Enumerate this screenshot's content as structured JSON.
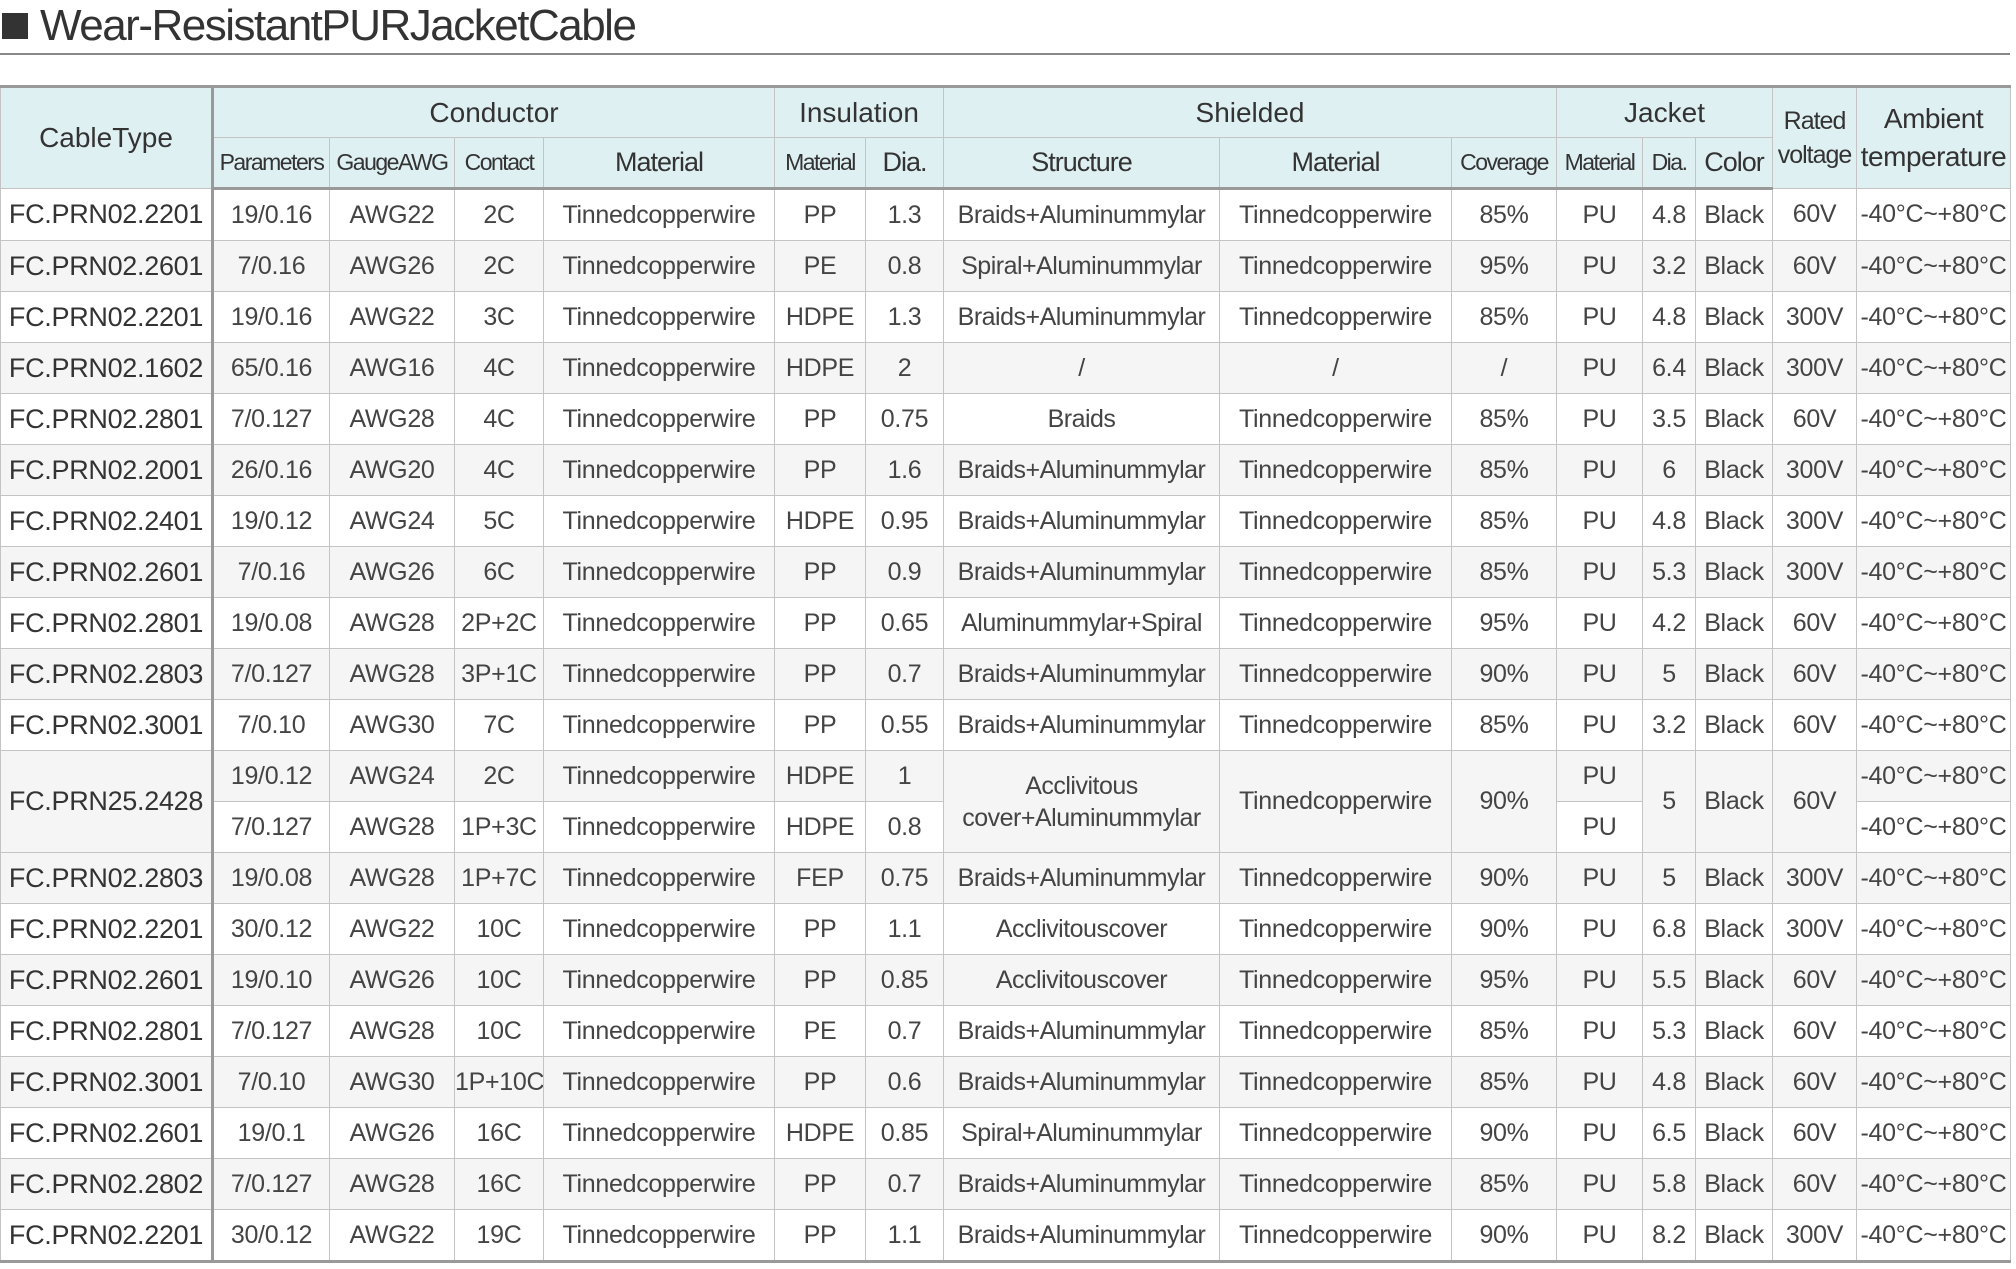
{
  "title": "Wear-ResistantPURJacketCable",
  "header": {
    "cable_type": "CableType",
    "conductor": "Conductor",
    "insulation": "Insulation",
    "shielded": "Shielded",
    "jacket": "Jacket",
    "rated_voltage": "Rated voltage",
    "ambient_temperature": "Ambient temperature",
    "conductor_parameters": "Parameters",
    "conductor_gauge": "GaugeAWG",
    "conductor_contact": "Contact",
    "conductor_material": "Material",
    "insulation_material": "Material",
    "insulation_dia": "Dia.",
    "shielded_structure": "Structure",
    "shielded_material": "Material",
    "shielded_coverage": "Coverage",
    "jacket_material": "Material",
    "jacket_dia": "Dia.",
    "jacket_color": "Color"
  },
  "table": {
    "rows": [
      [
        "FC.PRN02.2201",
        "19/0.16",
        "AWG22",
        "2C",
        "Tinnedcopperwire",
        "PP",
        "1.3",
        "Braids+Aluminummylar",
        "Tinnedcopperwire",
        "85%",
        "PU",
        "4.8",
        "Black",
        "60V",
        "-40°C~+80°C"
      ],
      [
        "FC.PRN02.2601",
        "7/0.16",
        "AWG26",
        "2C",
        "Tinnedcopperwire",
        "PE",
        "0.8",
        "Spiral+Aluminummylar",
        "Tinnedcopperwire",
        "95%",
        "PU",
        "3.2",
        "Black",
        "60V",
        "-40°C~+80°C"
      ],
      [
        "FC.PRN02.2201",
        "19/0.16",
        "AWG22",
        "3C",
        "Tinnedcopperwire",
        "HDPE",
        "1.3",
        "Braids+Aluminummylar",
        "Tinnedcopperwire",
        "85%",
        "PU",
        "4.8",
        "Black",
        "300V",
        "-40°C~+80°C"
      ],
      [
        "FC.PRN02.1602",
        "65/0.16",
        "AWG16",
        "4C",
        "Tinnedcopperwire",
        "HDPE",
        "2",
        "/",
        "/",
        "/",
        "PU",
        "6.4",
        "Black",
        "300V",
        "-40°C~+80°C"
      ],
      [
        "FC.PRN02.2801",
        "7/0.127",
        "AWG28",
        "4C",
        "Tinnedcopperwire",
        "PP",
        "0.75",
        "Braids",
        "Tinnedcopperwire",
        "85%",
        "PU",
        "3.5",
        "Black",
        "60V",
        "-40°C~+80°C"
      ],
      [
        "FC.PRN02.2001",
        "26/0.16",
        "AWG20",
        "4C",
        "Tinnedcopperwire",
        "PP",
        "1.6",
        "Braids+Aluminummylar",
        "Tinnedcopperwire",
        "85%",
        "PU",
        "6",
        "Black",
        "300V",
        "-40°C~+80°C"
      ],
      [
        "FC.PRN02.2401",
        "19/0.12",
        "AWG24",
        "5C",
        "Tinnedcopperwire",
        "HDPE",
        "0.95",
        "Braids+Aluminummylar",
        "Tinnedcopperwire",
        "85%",
        "PU",
        "4.8",
        "Black",
        "300V",
        "-40°C~+80°C"
      ],
      [
        "FC.PRN02.2601",
        "7/0.16",
        "AWG26",
        "6C",
        "Tinnedcopperwire",
        "PP",
        "0.9",
        "Braids+Aluminummylar",
        "Tinnedcopperwire",
        "85%",
        "PU",
        "5.3",
        "Black",
        "300V",
        "-40°C~+80°C"
      ],
      [
        "FC.PRN02.2801",
        "19/0.08",
        "AWG28",
        "2P+2C",
        "Tinnedcopperwire",
        "PP",
        "0.65",
        "Aluminummylar+Spiral",
        "Tinnedcopperwire",
        "95%",
        "PU",
        "4.2",
        "Black",
        "60V",
        "-40°C~+80°C"
      ],
      [
        "FC.PRN02.2803",
        "7/0.127",
        "AWG28",
        "3P+1C",
        "Tinnedcopperwire",
        "PP",
        "0.7",
        "Braids+Aluminummylar",
        "Tinnedcopperwire",
        "90%",
        "PU",
        "5",
        "Black",
        "60V",
        "-40°C~+80°C"
      ],
      [
        "FC.PRN02.3001",
        "7/0.10",
        "AWG30",
        "7C",
        "Tinnedcopperwire",
        "PP",
        "0.55",
        "Braids+Aluminummylar",
        "Tinnedcopperwire",
        "85%",
        "PU",
        "3.2",
        "Black",
        "60V",
        "-40°C~+80°C"
      ],
      [
        "FC.PRN25.2428",
        "19/0.12",
        "AWG24",
        "2C",
        "Tinnedcopperwire",
        "HDPE",
        "1",
        "Acclivitous cover+Aluminummylar",
        "Tinnedcopperwire",
        "90%",
        "PU",
        "5",
        "Black",
        "60V",
        "-40°C~+80°C"
      ],
      [
        "7/0.127",
        "AWG28",
        "1P+3C",
        "Tinnedcopperwire",
        "HDPE",
        "0.8",
        "PU",
        "-40°C~+80°C"
      ],
      [
        "FC.PRN02.2803",
        "19/0.08",
        "AWG28",
        "1P+7C",
        "Tinnedcopperwire",
        "FEP",
        "0.75",
        "Braids+Aluminummylar",
        "Tinnedcopperwire",
        "90%",
        "PU",
        "5",
        "Black",
        "300V",
        "-40°C~+80°C"
      ],
      [
        "FC.PRN02.2201",
        "30/0.12",
        "AWG22",
        "10C",
        "Tinnedcopperwire",
        "PP",
        "1.1",
        "Acclivitouscover",
        "Tinnedcopperwire",
        "90%",
        "PU",
        "6.8",
        "Black",
        "300V",
        "-40°C~+80°C"
      ],
      [
        "FC.PRN02.2601",
        "19/0.10",
        "AWG26",
        "10C",
        "Tinnedcopperwire",
        "PP",
        "0.85",
        "Acclivitouscover",
        "Tinnedcopperwire",
        "95%",
        "PU",
        "5.5",
        "Black",
        "60V",
        "-40°C~+80°C"
      ],
      [
        "FC.PRN02.2801",
        "7/0.127",
        "AWG28",
        "10C",
        "Tinnedcopperwire",
        "PE",
        "0.7",
        "Braids+Aluminummylar",
        "Tinnedcopperwire",
        "85%",
        "PU",
        "5.3",
        "Black",
        "60V",
        "-40°C~+80°C"
      ],
      [
        "FC.PRN02.3001",
        "7/0.10",
        "AWG30",
        "1P+10C",
        "Tinnedcopperwire",
        "PP",
        "0.6",
        "Braids+Aluminummylar",
        "Tinnedcopperwire",
        "85%",
        "PU",
        "4.8",
        "Black",
        "60V",
        "-40°C~+80°C"
      ],
      [
        "FC.PRN02.2601",
        "19/0.1",
        "AWG26",
        "16C",
        "Tinnedcopperwire",
        "HDPE",
        "0.85",
        "Spiral+Aluminummylar",
        "Tinnedcopperwire",
        "90%",
        "PU",
        "6.5",
        "Black",
        "60V",
        "-40°C~+80°C"
      ],
      [
        "FC.PRN02.2802",
        "7/0.127",
        "AWG28",
        "16C",
        "Tinnedcopperwire",
        "PP",
        "0.7",
        "Braids+Aluminummylar",
        "Tinnedcopperwire",
        "85%",
        "PU",
        "5.8",
        "Black",
        "60V",
        "-40°C~+80°C"
      ],
      [
        "FC.PRN02.2201",
        "30/0.12",
        "AWG22",
        "19C",
        "Tinnedcopperwire",
        "PP",
        "1.1",
        "Braids+Aluminummylar",
        "Tinnedcopperwire",
        "90%",
        "PU",
        "8.2",
        "Black",
        "300V",
        "-40°C~+80°C"
      ]
    ]
  },
  "colors": {
    "header_bg": "#dff0f3",
    "border": "#c4c4c4",
    "alt_row": "#f5f5f5",
    "text": "#333333"
  }
}
